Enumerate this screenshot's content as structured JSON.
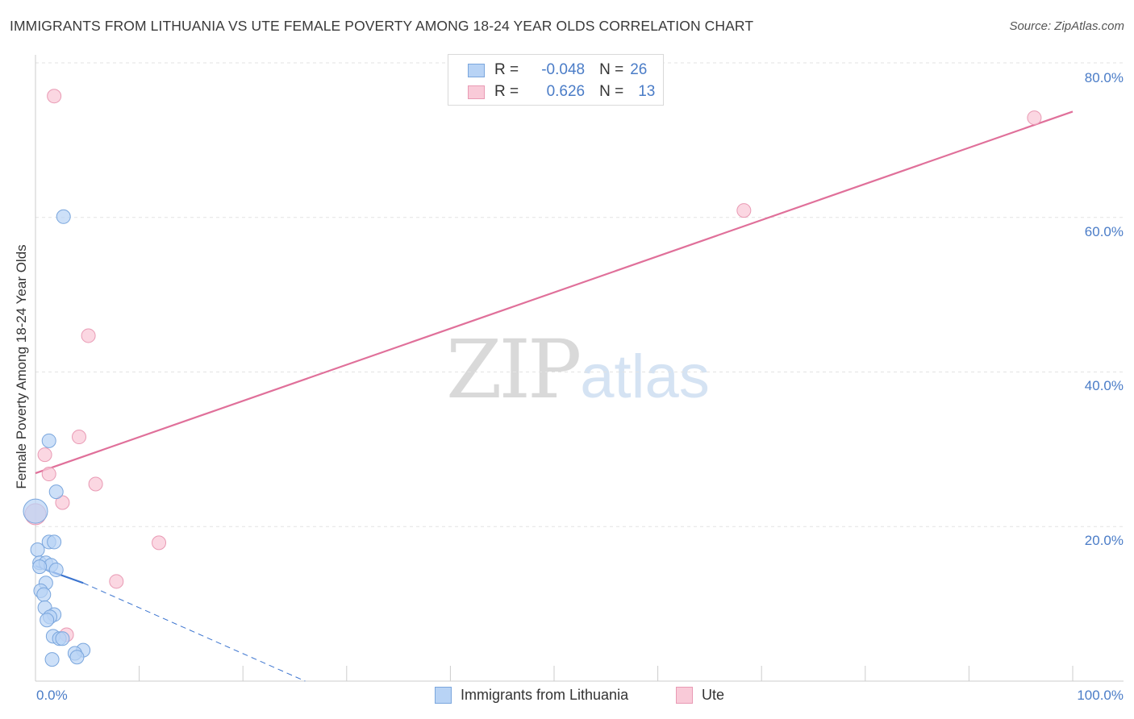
{
  "title": "IMMIGRANTS FROM LITHUANIA VS UTE FEMALE POVERTY AMONG 18-24 YEAR OLDS CORRELATION CHART",
  "source": "Source: ZipAtlas.com",
  "watermark": {
    "zip": "ZIP",
    "atlas": "atlas"
  },
  "legend_top": {
    "rows": [
      {
        "r_label": "R =",
        "r_value": "-0.048",
        "n_label": "N =",
        "n_value": "26"
      },
      {
        "r_label": "R =",
        "r_value": "0.626",
        "n_label": "N =",
        "n_value": "13"
      }
    ]
  },
  "legend_bottom": {
    "series1": "Immigrants from Lithuania",
    "series2": "Ute"
  },
  "colors": {
    "blue_fill": "#b8d3f5",
    "blue_stroke": "#7aa6dd",
    "blue_line": "#3b74cf",
    "pink_fill": "#f9cad8",
    "pink_stroke": "#e99ab4",
    "pink_line": "#e0709a",
    "tick_text": "#4a7cc7",
    "grid": "#e3e3e3"
  },
  "axis_labels": {
    "x_min": "0.0%",
    "x_max": "100.0%",
    "y_ticks": [
      "80.0%",
      "60.0%",
      "40.0%",
      "20.0%"
    ]
  },
  "chart_data": {
    "type": "scatter",
    "title": "IMMIGRANTS FROM LITHUANIA VS UTE FEMALE POVERTY AMONG 18-24 YEAR OLDS CORRELATION CHART",
    "xlabel": "",
    "ylabel": "Female Poverty Among 18-24 Year Olds",
    "xlim": [
      0,
      100
    ],
    "ylim": [
      0,
      82
    ],
    "y_ticks": [
      20,
      40,
      60,
      80
    ],
    "grid": true,
    "legend": "bottom",
    "series": [
      {
        "name": "Immigrants from Lithuania",
        "r": -0.048,
        "n": 26,
        "points": [
          {
            "x": 2.7,
            "y": 60.1
          },
          {
            "x": 1.3,
            "y": 31.1
          },
          {
            "x": 2.0,
            "y": 24.5
          },
          {
            "x": 0.0,
            "y": 22.0
          },
          {
            "x": 1.3,
            "y": 18.0
          },
          {
            "x": 1.8,
            "y": 18.0
          },
          {
            "x": 0.2,
            "y": 17.0
          },
          {
            "x": 0.4,
            "y": 15.3
          },
          {
            "x": 1.0,
            "y": 15.3
          },
          {
            "x": 1.5,
            "y": 15.0
          },
          {
            "x": 0.4,
            "y": 14.8
          },
          {
            "x": 2.0,
            "y": 14.4
          },
          {
            "x": 1.0,
            "y": 12.7
          },
          {
            "x": 0.5,
            "y": 11.7
          },
          {
            "x": 0.8,
            "y": 11.2
          },
          {
            "x": 0.9,
            "y": 9.5
          },
          {
            "x": 1.8,
            "y": 8.6
          },
          {
            "x": 1.4,
            "y": 8.3
          },
          {
            "x": 1.1,
            "y": 7.9
          },
          {
            "x": 1.7,
            "y": 5.8
          },
          {
            "x": 2.3,
            "y": 5.5
          },
          {
            "x": 4.6,
            "y": 4.0
          },
          {
            "x": 2.6,
            "y": 5.5
          },
          {
            "x": 3.8,
            "y": 3.6
          },
          {
            "x": 4.0,
            "y": 3.1
          },
          {
            "x": 1.6,
            "y": 2.8
          }
        ],
        "trend": {
          "x": [
            0,
            4.6
          ],
          "y": [
            14.9,
            12.7
          ],
          "extended_to": {
            "x": 26.0,
            "y": 0
          }
        }
      },
      {
        "name": "Ute",
        "r": 0.626,
        "n": 13,
        "points": [
          {
            "x": 1.8,
            "y": 75.7
          },
          {
            "x": 96.3,
            "y": 72.9
          },
          {
            "x": 68.3,
            "y": 60.9
          },
          {
            "x": 5.1,
            "y": 44.7
          },
          {
            "x": 4.2,
            "y": 31.6
          },
          {
            "x": 0.9,
            "y": 29.3
          },
          {
            "x": 1.3,
            "y": 26.8
          },
          {
            "x": 5.8,
            "y": 25.5
          },
          {
            "x": 2.6,
            "y": 23.1
          },
          {
            "x": 0.0,
            "y": 21.6
          },
          {
            "x": 11.9,
            "y": 17.9
          },
          {
            "x": 7.8,
            "y": 12.9
          },
          {
            "x": 3.0,
            "y": 6.0
          }
        ],
        "trend": {
          "x": [
            0,
            100
          ],
          "y": [
            26.9,
            73.7
          ]
        }
      }
    ]
  }
}
